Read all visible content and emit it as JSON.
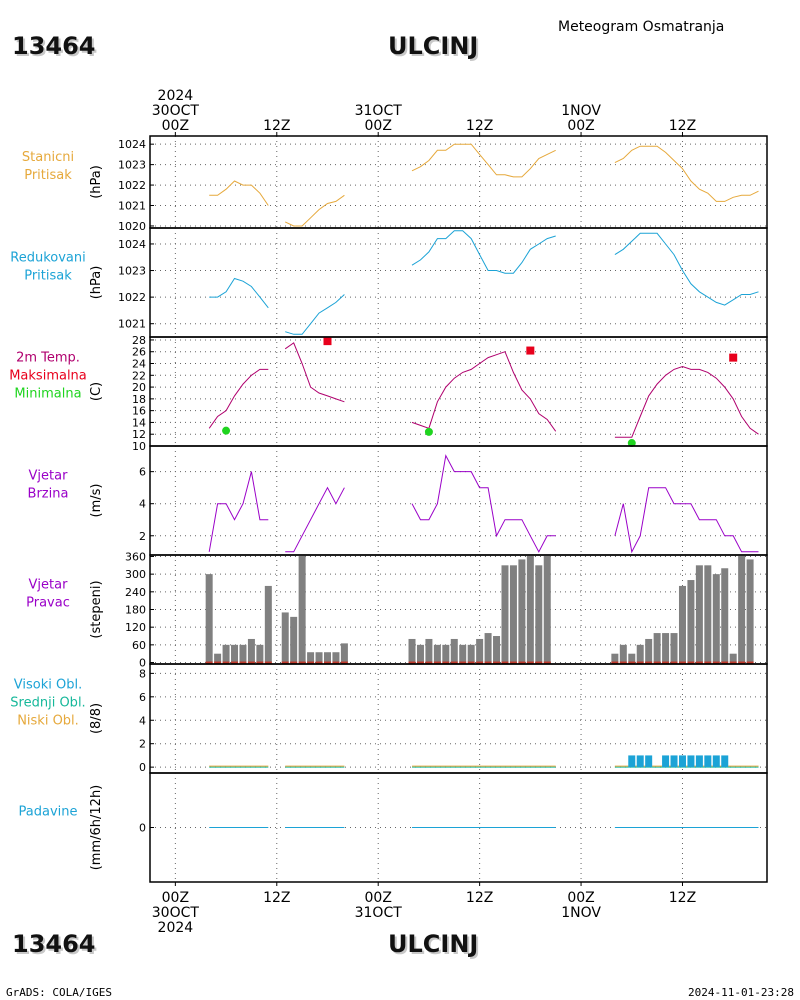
{
  "header": {
    "station_id": "13464",
    "station_name": "ULCINJ",
    "title": "Meteogram Osmatranja"
  },
  "footer": {
    "credit": "GrADS: COLA/IGES",
    "timestamp": "2024-11-01-23:28"
  },
  "time_axis": {
    "top_labels": [
      {
        "hour": 0,
        "lines": [
          "2024",
          "30OCT",
          "00Z"
        ]
      },
      {
        "hour": 12,
        "lines": [
          "12Z"
        ]
      },
      {
        "hour": 24,
        "lines": [
          "31OCT",
          "00Z"
        ]
      },
      {
        "hour": 36,
        "lines": [
          "12Z"
        ]
      },
      {
        "hour": 48,
        "lines": [
          "1NOV",
          "00Z"
        ]
      },
      {
        "hour": 60,
        "lines": [
          "12Z"
        ]
      }
    ],
    "bottom_labels": [
      {
        "hour": 0,
        "lines": [
          "00Z",
          "30OCT",
          "2024"
        ]
      },
      {
        "hour": 12,
        "lines": [
          "12Z"
        ]
      },
      {
        "hour": 24,
        "lines": [
          "00Z",
          "31OCT"
        ]
      },
      {
        "hour": 36,
        "lines": [
          "12Z"
        ]
      },
      {
        "hour": 48,
        "lines": [
          "00Z",
          "1NOV"
        ]
      },
      {
        "hour": 60,
        "lines": [
          "12Z"
        ]
      }
    ],
    "range_hours": [
      -3,
      70
    ]
  },
  "colors": {
    "station_pressure": "#e6a93c",
    "reduced_pressure": "#1ca3d6",
    "tmax": "#e8001c",
    "tmin": "#1fd41f",
    "temp_line": "#b0006e",
    "wind": "#9a00c8",
    "wind_dir_bar": "#808080",
    "wind_dir_base": "#c0392b",
    "cloud_high": "#1ca3d6",
    "cloud_mid": "#16b89a",
    "cloud_low": "#e6a93c",
    "precip": "#1ca3d6"
  },
  "chart_data": [
    {
      "type": "line",
      "name": "station_pressure",
      "labels": [
        "Stanicni",
        "Pritisak"
      ],
      "ylabel": "(hPa)",
      "yticks": [
        1020,
        1021,
        1022,
        1023,
        1024
      ],
      "ylim": [
        1019.9,
        1024.4
      ],
      "grid": true,
      "segments": [
        {
          "x": [
            4,
            5,
            6,
            7,
            8,
            9,
            10,
            11
          ],
          "y": [
            1021.5,
            1021.5,
            1021.8,
            1022.2,
            1022.0,
            1022.0,
            1021.6,
            1021.0
          ]
        },
        {
          "x": [
            13,
            14,
            15,
            16,
            17,
            18,
            19,
            20
          ],
          "y": [
            1020.2,
            1020.0,
            1020.0,
            1020.4,
            1020.8,
            1021.1,
            1021.2,
            1021.5
          ]
        },
        {
          "x": [
            28,
            29,
            30,
            31,
            32,
            33,
            34,
            35,
            36,
            37,
            38,
            39,
            40,
            41,
            42,
            43,
            44,
            45
          ],
          "y": [
            1022.7,
            1022.9,
            1023.2,
            1023.7,
            1023.7,
            1024.0,
            1024.0,
            1024.0,
            1023.5,
            1023.0,
            1022.5,
            1022.5,
            1022.4,
            1022.4,
            1022.8,
            1023.3,
            1023.5,
            1023.7
          ]
        },
        {
          "x": [
            52,
            53,
            54,
            55,
            56,
            57,
            58,
            59,
            60,
            61,
            62,
            63,
            64,
            65,
            66,
            67,
            68,
            69
          ],
          "y": [
            1023.1,
            1023.3,
            1023.7,
            1023.9,
            1023.9,
            1023.9,
            1023.6,
            1023.2,
            1022.8,
            1022.2,
            1021.8,
            1021.6,
            1021.2,
            1021.2,
            1021.4,
            1021.5,
            1021.5,
            1021.7
          ]
        }
      ]
    },
    {
      "type": "line",
      "name": "reduced_pressure",
      "labels": [
        "Redukovani",
        "Pritisak"
      ],
      "ylabel": "(hPa)",
      "yticks": [
        1021,
        1022,
        1023,
        1024
      ],
      "ylim": [
        1020.5,
        1024.6
      ],
      "grid": true,
      "segments": [
        {
          "x": [
            4,
            5,
            6,
            7,
            8,
            9,
            10,
            11
          ],
          "y": [
            1022.0,
            1022.0,
            1022.2,
            1022.7,
            1022.6,
            1022.4,
            1022.0,
            1021.6
          ]
        },
        {
          "x": [
            13,
            14,
            15,
            16,
            17,
            18,
            19,
            20
          ],
          "y": [
            1020.7,
            1020.6,
            1020.6,
            1021.0,
            1021.4,
            1021.6,
            1021.8,
            1022.1
          ]
        },
        {
          "x": [
            28,
            29,
            30,
            31,
            32,
            33,
            34,
            35,
            36,
            37,
            38,
            39,
            40,
            41,
            42,
            43,
            44,
            45
          ],
          "y": [
            1023.2,
            1023.4,
            1023.7,
            1024.2,
            1024.2,
            1024.5,
            1024.5,
            1024.2,
            1023.6,
            1023.0,
            1023.0,
            1022.9,
            1022.9,
            1023.3,
            1023.8,
            1024.0,
            1024.2,
            1024.3
          ]
        },
        {
          "x": [
            52,
            53,
            54,
            55,
            56,
            57,
            58,
            59,
            60,
            61,
            62,
            63,
            64,
            65,
            66,
            67,
            68,
            69
          ],
          "y": [
            1023.6,
            1023.8,
            1024.1,
            1024.4,
            1024.4,
            1024.4,
            1024.0,
            1023.6,
            1023.0,
            1022.5,
            1022.2,
            1022.0,
            1021.8,
            1021.7,
            1021.9,
            1022.1,
            1022.1,
            1022.2
          ]
        }
      ]
    },
    {
      "type": "line",
      "name": "temperature",
      "labels": [
        "2m Temp.",
        "Maksimalna",
        "Minimalna"
      ],
      "ylabel": "(C)",
      "yticks": [
        10,
        12,
        14,
        16,
        18,
        20,
        22,
        24,
        26,
        28
      ],
      "ylim": [
        10,
        28.5
      ],
      "grid": true,
      "segments": [
        {
          "x": [
            4,
            5,
            6,
            7,
            8,
            9,
            10,
            11
          ],
          "y": [
            13.0,
            15.0,
            16.0,
            18.5,
            20.5,
            22.0,
            23.0,
            23.0
          ]
        },
        {
          "x": [
            13,
            14,
            15,
            16,
            17,
            18,
            19,
            20
          ],
          "y": [
            26.5,
            27.5,
            24.0,
            20.0,
            19.0,
            18.5,
            18.0,
            17.5
          ]
        },
        {
          "x": [
            28,
            29,
            30,
            31,
            32,
            33,
            34,
            35,
            36,
            37,
            38,
            39,
            40,
            41,
            42,
            43,
            44,
            45
          ],
          "y": [
            14.0,
            13.5,
            13.0,
            17.5,
            20.0,
            21.5,
            22.5,
            23.0,
            24.0,
            25.0,
            25.5,
            26.0,
            22.5,
            19.5,
            18.0,
            15.5,
            14.5,
            12.5
          ]
        },
        {
          "x": [
            52,
            53,
            54,
            55,
            56,
            57,
            58,
            59,
            60,
            61,
            62,
            63,
            64,
            65,
            66,
            67,
            68,
            69
          ],
          "y": [
            11.5,
            11.5,
            11.5,
            15.0,
            18.5,
            20.5,
            22.0,
            23.0,
            23.5,
            23.0,
            23.0,
            22.5,
            21.5,
            20.0,
            18.0,
            15.0,
            13.0,
            12.0
          ]
        }
      ],
      "tmax_points": [
        {
          "x": 18,
          "y": 27.8
        },
        {
          "x": 42,
          "y": 26.2
        },
        {
          "x": 66,
          "y": 25.0
        }
      ],
      "tmin_points": [
        {
          "x": 6,
          "y": 12.6
        },
        {
          "x": 30,
          "y": 12.4
        },
        {
          "x": 54,
          "y": 10.5
        }
      ]
    },
    {
      "type": "line",
      "name": "wind_speed",
      "labels": [
        "Vjetar",
        "Brzina"
      ],
      "ylabel": "(m/s)",
      "yticks": [
        2,
        4,
        6
      ],
      "ylim": [
        0.8,
        7.6
      ],
      "grid": true,
      "segments": [
        {
          "x": [
            4,
            5,
            6,
            7,
            8,
            9,
            10,
            11
          ],
          "y": [
            1,
            4,
            4,
            3,
            4,
            6,
            3,
            3
          ]
        },
        {
          "x": [
            13,
            14,
            15,
            16,
            17,
            18,
            19,
            20
          ],
          "y": [
            1,
            1,
            2,
            3,
            4,
            5,
            4,
            5
          ]
        },
        {
          "x": [
            28,
            29,
            30,
            31,
            32,
            33,
            34,
            35,
            36,
            37,
            38,
            39,
            40,
            41,
            42,
            43,
            44,
            45
          ],
          "y": [
            4,
            3,
            3,
            4,
            7,
            6,
            6,
            6,
            5,
            5,
            2,
            3,
            3,
            3,
            2,
            1,
            2,
            2
          ]
        },
        {
          "x": [
            52,
            53,
            54,
            55,
            56,
            57,
            58,
            59,
            60,
            61,
            62,
            63,
            64,
            65,
            66,
            67,
            68,
            69
          ],
          "y": [
            2,
            4,
            1,
            2,
            5,
            5,
            5,
            4,
            4,
            4,
            3,
            3,
            3,
            2,
            2,
            1,
            1,
            1
          ]
        }
      ]
    },
    {
      "type": "bar",
      "name": "wind_direction",
      "labels": [
        "Vjetar",
        "Pravac"
      ],
      "ylabel": "(stepeni)",
      "yticks": [
        0,
        60,
        120,
        180,
        240,
        300,
        360
      ],
      "ylim": [
        -5,
        365
      ],
      "grid": true,
      "bars": [
        {
          "x": 4,
          "y": 300
        },
        {
          "x": 5,
          "y": 30
        },
        {
          "x": 6,
          "y": 60
        },
        {
          "x": 7,
          "y": 60
        },
        {
          "x": 8,
          "y": 60
        },
        {
          "x": 9,
          "y": 80
        },
        {
          "x": 10,
          "y": 60
        },
        {
          "x": 11,
          "y": 260
        },
        {
          "x": 13,
          "y": 170
        },
        {
          "x": 14,
          "y": 155
        },
        {
          "x": 15,
          "y": 365
        },
        {
          "x": 16,
          "y": 35
        },
        {
          "x": 17,
          "y": 35
        },
        {
          "x": 18,
          "y": 35
        },
        {
          "x": 19,
          "y": 35
        },
        {
          "x": 20,
          "y": 65
        },
        {
          "x": 28,
          "y": 80
        },
        {
          "x": 29,
          "y": 60
        },
        {
          "x": 30,
          "y": 80
        },
        {
          "x": 31,
          "y": 60
        },
        {
          "x": 32,
          "y": 60
        },
        {
          "x": 33,
          "y": 80
        },
        {
          "x": 34,
          "y": 60
        },
        {
          "x": 35,
          "y": 60
        },
        {
          "x": 36,
          "y": 80
        },
        {
          "x": 37,
          "y": 100
        },
        {
          "x": 38,
          "y": 90
        },
        {
          "x": 39,
          "y": 330
        },
        {
          "x": 40,
          "y": 330
        },
        {
          "x": 41,
          "y": 350
        },
        {
          "x": 42,
          "y": 365
        },
        {
          "x": 43,
          "y": 330
        },
        {
          "x": 44,
          "y": 365
        },
        {
          "x": 52,
          "y": 30
        },
        {
          "x": 53,
          "y": 60
        },
        {
          "x": 54,
          "y": 30
        },
        {
          "x": 55,
          "y": 60
        },
        {
          "x": 56,
          "y": 80
        },
        {
          "x": 57,
          "y": 100
        },
        {
          "x": 58,
          "y": 100
        },
        {
          "x": 59,
          "y": 100
        },
        {
          "x": 60,
          "y": 260
        },
        {
          "x": 61,
          "y": 280
        },
        {
          "x": 62,
          "y": 330
        },
        {
          "x": 63,
          "y": 330
        },
        {
          "x": 64,
          "y": 300
        },
        {
          "x": 65,
          "y": 320
        },
        {
          "x": 66,
          "y": 30
        },
        {
          "x": 67,
          "y": 365
        },
        {
          "x": 68,
          "y": 350
        }
      ]
    },
    {
      "type": "bar",
      "name": "clouds",
      "labels": [
        "Visoki Obl.",
        "Srednji Obl.",
        "Niski Obl."
      ],
      "ylabel": "(8/8)",
      "yticks": [
        0,
        2,
        4,
        6,
        8
      ],
      "ylim": [
        -0.5,
        8.8
      ],
      "grid": true,
      "observed_ranges": [
        [
          4,
          11
        ],
        [
          13,
          20
        ],
        [
          28,
          45
        ],
        [
          52,
          69
        ]
      ],
      "high_cloud_bars": [
        {
          "x": 54,
          "y": 1
        },
        {
          "x": 55,
          "y": 1
        },
        {
          "x": 56,
          "y": 1
        },
        {
          "x": 58,
          "y": 1
        },
        {
          "x": 59,
          "y": 1
        },
        {
          "x": 60,
          "y": 1
        },
        {
          "x": 61,
          "y": 1
        },
        {
          "x": 62,
          "y": 1
        },
        {
          "x": 63,
          "y": 1
        },
        {
          "x": 64,
          "y": 1
        },
        {
          "x": 65,
          "y": 1
        }
      ]
    },
    {
      "type": "line",
      "name": "precipitation",
      "labels": [
        "Padavine"
      ],
      "ylabel": "(mm/6h/12h)",
      "yticks": [
        0
      ],
      "ylim": [
        -0.6,
        0.6
      ],
      "grid": true,
      "segments": [
        {
          "x": [
            4,
            11
          ],
          "y": [
            0,
            0
          ]
        },
        {
          "x": [
            13,
            20
          ],
          "y": [
            0,
            0
          ]
        },
        {
          "x": [
            28,
            45
          ],
          "y": [
            0,
            0
          ]
        },
        {
          "x": [
            52,
            69
          ],
          "y": [
            0,
            0
          ]
        }
      ]
    }
  ]
}
